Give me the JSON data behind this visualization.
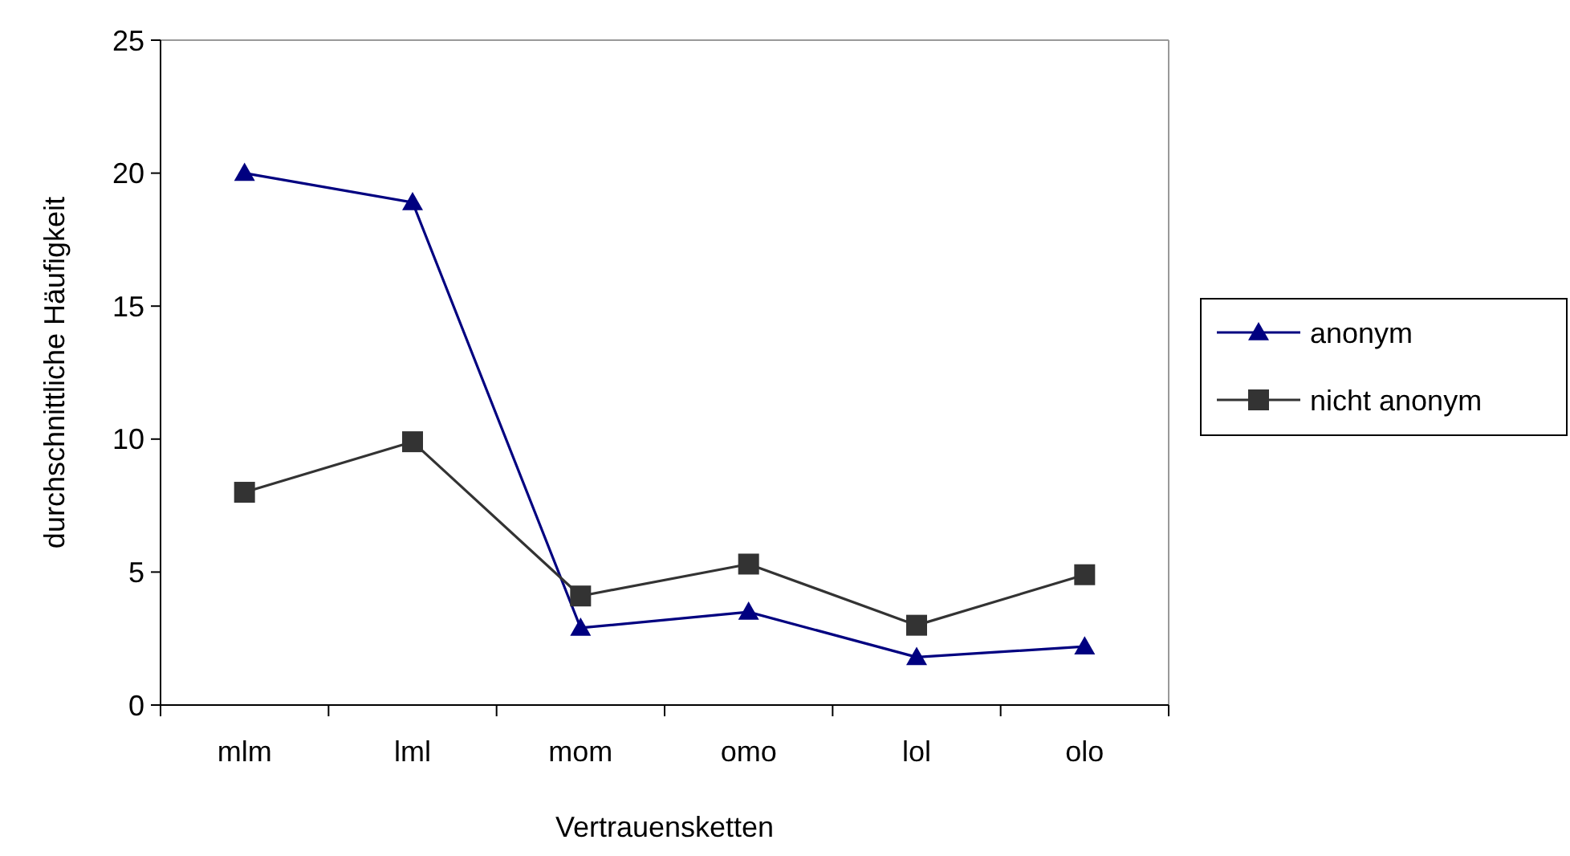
{
  "chart_data": {
    "type": "line",
    "xlabel": "Vertrauensketten",
    "ylabel": "durchschnittliche Häufigkeit",
    "categories": [
      "mlm",
      "lml",
      "mom",
      "omo",
      "lol",
      "olo"
    ],
    "series": [
      {
        "name": "anonym",
        "color": "#000080",
        "marker": "triangle",
        "values": [
          20.0,
          18.9,
          2.9,
          3.5,
          1.8,
          2.2
        ]
      },
      {
        "name": "nicht anonym",
        "color": "#333333",
        "marker": "square",
        "values": [
          8.0,
          9.9,
          4.1,
          5.3,
          3.0,
          4.9
        ]
      }
    ],
    "ylim": [
      0,
      25
    ],
    "yticks": [
      0,
      5,
      10,
      15,
      20,
      25
    ],
    "grid": false,
    "legend": "right",
    "line_style": "solid"
  }
}
